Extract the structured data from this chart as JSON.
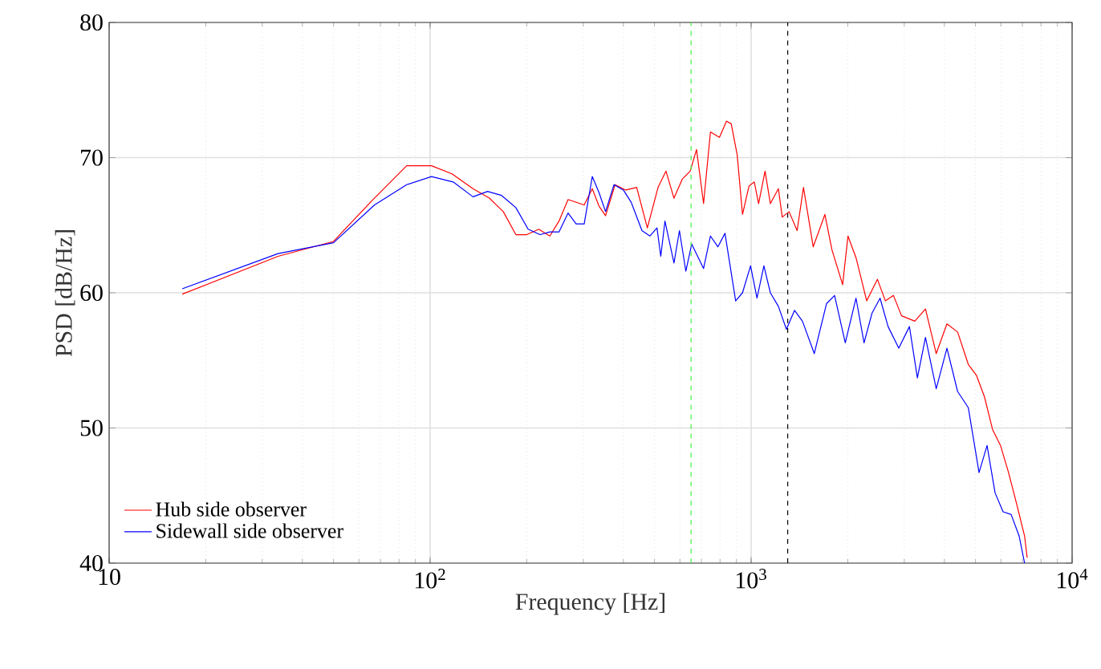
{
  "chart_data": {
    "type": "line",
    "xlabel": "Frequency [Hz]",
    "ylabel": "PSD [dB/Hz]",
    "log": "x",
    "grid": true,
    "legend": "bottom left",
    "xlim": [
      10,
      10000
    ],
    "ylim": [
      40,
      80
    ],
    "xticks": [
      10,
      {
        "value": 100,
        "label": "10$^{2}$"
      },
      {
        "value": 1000,
        "label": "10$^{3}$"
      },
      {
        "value": 10000,
        "label": "10$^{4}$"
      }
    ],
    "yticks": [
      40,
      50,
      60,
      70,
      80
    ],
    "ref_lines": [
      {
        "axis": "x",
        "value": 650,
        "color": "#44ee44",
        "line_style": "dashed"
      },
      {
        "axis": "x",
        "value": 1300,
        "color": "#000000",
        "line_style": "dashed"
      }
    ],
    "series": [
      {
        "name": "Hub side observer",
        "color": "#ff0000",
        "x": [
          16.9,
          33.6,
          50,
          65.8,
          84.5,
          101,
          117,
          136,
          153,
          169,
          185,
          200,
          218,
          236,
          252,
          269,
          302,
          320,
          336,
          352,
          377,
          407,
          440,
          475,
          513,
          543,
          575,
          610,
          646,
          676,
          711,
          747,
          797,
          838,
          867,
          905,
          940,
          985,
          1023,
          1055,
          1105,
          1148,
          1216,
          1250,
          1313,
          1391,
          1456,
          1561,
          1698,
          1785,
          1928,
          2003,
          2122,
          2291,
          2474,
          2620,
          2776,
          2941,
          3236,
          3493,
          3773,
          4074,
          4398,
          4749,
          5033,
          5333,
          5649,
          5984,
          6339,
          6714,
          7112,
          7244
        ],
        "values": [
          59.9,
          62.7,
          63.8,
          66.8,
          69.4,
          69.4,
          68.8,
          67.7,
          67.0,
          66.0,
          64.3,
          64.3,
          64.7,
          64.2,
          65.3,
          66.9,
          66.5,
          67.7,
          66.4,
          65.7,
          68.0,
          67.6,
          67.8,
          64.8,
          67.8,
          69.0,
          67.0,
          68.4,
          69.0,
          70.6,
          66.6,
          71.9,
          71.5,
          72.7,
          72.5,
          70.2,
          65.8,
          67.9,
          68.2,
          66.6,
          69.0,
          66.6,
          67.7,
          65.6,
          66.0,
          64.6,
          67.8,
          63.4,
          65.8,
          63.2,
          60.6,
          64.2,
          62.6,
          59.4,
          61.0,
          59.4,
          59.8,
          58.3,
          57.9,
          58.8,
          55.5,
          57.7,
          57.1,
          54.7,
          53.9,
          52.3,
          49.9,
          48.7,
          46.7,
          44.4,
          42.0,
          40.4
        ]
      },
      {
        "name": "Sidewall side observer",
        "color": "#0000ff",
        "x": [
          16.9,
          33.6,
          50,
          67.1,
          84.5,
          101,
          118,
          136,
          151,
          167,
          185,
          202,
          220,
          236,
          252,
          269,
          285,
          302,
          320,
          336,
          352,
          374,
          400,
          423,
          457,
          484,
          509,
          523,
          539,
          575,
          598,
          626,
          653,
          711,
          747,
          788,
          829,
          895,
          940,
          996,
          1043,
          1096,
          1148,
          1216,
          1288,
          1365,
          1445,
          1573,
          1718,
          1820,
          1965,
          2122,
          2248,
          2381,
          2522,
          2671,
          2884,
          3113,
          3296,
          3493,
          3773,
          4074,
          4398,
          4749,
          5129,
          5433,
          5754,
          6095,
          6457,
          6839,
          7112
        ],
        "values": [
          60.3,
          62.9,
          63.7,
          66.5,
          68.0,
          68.6,
          68.2,
          67.1,
          67.5,
          67.2,
          66.3,
          64.7,
          64.3,
          64.5,
          64.5,
          65.9,
          65.1,
          65.1,
          68.6,
          67.4,
          66.0,
          68.0,
          67.6,
          66.7,
          64.6,
          64.2,
          64.8,
          62.7,
          65.3,
          62.2,
          64.6,
          61.6,
          63.6,
          61.8,
          64.2,
          63.4,
          64.4,
          59.4,
          60.0,
          62.0,
          59.6,
          62.0,
          60.0,
          59.0,
          57.3,
          58.7,
          57.9,
          55.5,
          59.2,
          59.8,
          56.3,
          59.6,
          56.3,
          58.5,
          59.6,
          57.5,
          55.9,
          57.5,
          53.7,
          56.7,
          52.9,
          55.9,
          52.7,
          51.5,
          46.7,
          48.7,
          45.2,
          43.8,
          43.6,
          42.0,
          40.0
        ]
      }
    ]
  }
}
